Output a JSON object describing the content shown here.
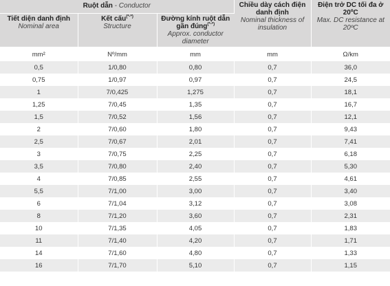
{
  "header": {
    "conductor_vi": "Ruột dẫn",
    "conductor_sep": " - ",
    "conductor_en": "Conductor",
    "area_vi": "Tiết diện danh định",
    "area_en": "Nominal area",
    "structure_vi": "Kết cấu",
    "structure_sup": "(*-*)",
    "structure_en": "Structure",
    "diameter_vi": "Đường kính ruột dẫn gần đúng",
    "diameter_sup": "(*-*)",
    "diameter_en": "Approx. conductor diameter",
    "insulation_vi": "Chiều dày cách điện danh định",
    "insulation_en": "Nominal thickness of insulation",
    "resistance_vi": "Điện trở DC tối đa ở 20ºC",
    "resistance_en": "Max. DC resistance at 20ºC"
  },
  "units": [
    "mm²",
    "Nº/mm",
    "mm",
    "mm",
    "Ω/km"
  ],
  "rows": [
    [
      "0,5",
      "1/0,80",
      "0,80",
      "0,7",
      "36,0"
    ],
    [
      "0,75",
      "1/0,97",
      "0,97",
      "0,7",
      "24,5"
    ],
    [
      "1",
      "7/0,425",
      "1,275",
      "0,7",
      "18,1"
    ],
    [
      "1,25",
      "7/0,45",
      "1,35",
      "0,7",
      "16,7"
    ],
    [
      "1,5",
      "7/0,52",
      "1,56",
      "0,7",
      "12,1"
    ],
    [
      "2",
      "7/0,60",
      "1,80",
      "0,7",
      "9,43"
    ],
    [
      "2,5",
      "7/0,67",
      "2,01",
      "0,7",
      "7,41"
    ],
    [
      "3",
      "7/0,75",
      "2,25",
      "0,7",
      "6,18"
    ],
    [
      "3,5",
      "7/0,80",
      "2,40",
      "0,7",
      "5,30"
    ],
    [
      "4",
      "7/0,85",
      "2,55",
      "0,7",
      "4,61"
    ],
    [
      "5,5",
      "7/1,00",
      "3,00",
      "0,7",
      "3,40"
    ],
    [
      "6",
      "7/1,04",
      "3,12",
      "0,7",
      "3,08"
    ],
    [
      "8",
      "7/1,20",
      "3,60",
      "0,7",
      "2,31"
    ],
    [
      "10",
      "7/1,35",
      "4,05",
      "0,7",
      "1,83"
    ],
    [
      "11",
      "7/1,40",
      "4,20",
      "0,7",
      "1,71"
    ],
    [
      "14",
      "7/1,60",
      "4,80",
      "0,7",
      "1,33"
    ],
    [
      "16",
      "7/1,70",
      "5,10",
      "0,7",
      "1,15"
    ]
  ]
}
